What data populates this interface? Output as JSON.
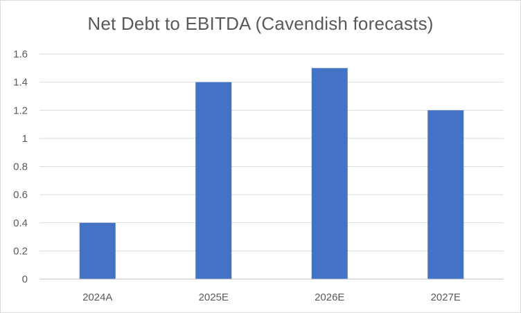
{
  "chart_data": {
    "type": "bar",
    "title": "Net Debt to EBITDA (Cavendish forecasts)",
    "xlabel": "",
    "ylabel": "",
    "categories": [
      "2024A",
      "2025E",
      "2026E",
      "2027E"
    ],
    "values": [
      0.4,
      1.4,
      1.5,
      1.2
    ],
    "ylim": [
      0,
      1.6
    ],
    "yticks": [
      "0",
      "0.2",
      "0.4",
      "0.6",
      "0.8",
      "1",
      "1.2",
      "1.4",
      "1.6"
    ],
    "grid": true,
    "legend": "none",
    "colors": {
      "bar": "#4472c4",
      "grid": "#d9d9d9",
      "axis": "#bfbfbf",
      "text": "#595959"
    }
  }
}
